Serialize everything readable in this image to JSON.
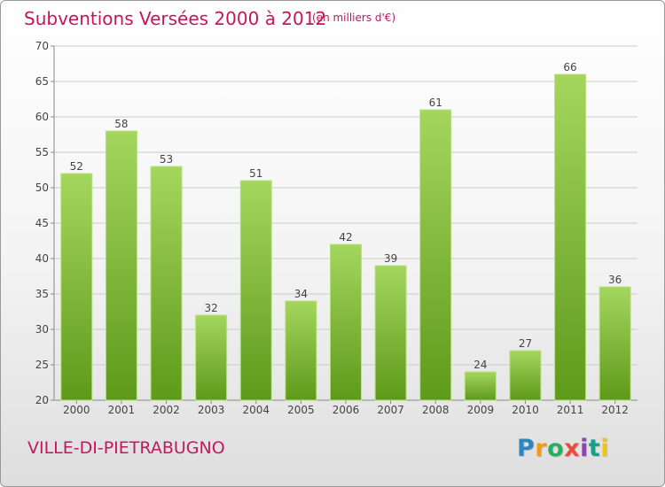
{
  "header": {
    "title": "Subventions Versées 2000 à 2012",
    "subtitle": "(en milliers d'€)"
  },
  "footer": {
    "commune": "VILLE-DI-PIETRABUGNO",
    "logo_text": "Proxiti",
    "logo_letters": [
      "P",
      "r",
      "o",
      "x",
      "i",
      "t",
      "i"
    ],
    "logo_colors": [
      "#2e86c1",
      "#f39c12",
      "#27ae60",
      "#e74c3c",
      "#8e44ad",
      "#16a085",
      "#f1c40f"
    ]
  },
  "colors": {
    "bar_top": "#a4d65e",
    "bar_bottom": "#5e9a1a",
    "bar_edge": "#b9e07f",
    "text_accent": "#c2185b",
    "grid": "#cccccc",
    "axis": "#888888"
  },
  "chart_data": {
    "type": "bar",
    "categories": [
      "2000",
      "2001",
      "2002",
      "2003",
      "2004",
      "2005",
      "2006",
      "2007",
      "2008",
      "2009",
      "2010",
      "2011",
      "2012"
    ],
    "values": [
      52,
      58,
      53,
      32,
      51,
      34,
      42,
      39,
      61,
      24,
      27,
      66,
      36
    ],
    "title": "Subventions Versées 2000 à 2012",
    "subtitle": "(en milliers d'€)",
    "ylim": [
      20,
      70
    ],
    "yticks": [
      20,
      25,
      30,
      35,
      40,
      45,
      50,
      55,
      60,
      65,
      70
    ],
    "grid": true,
    "data_labels": true
  }
}
